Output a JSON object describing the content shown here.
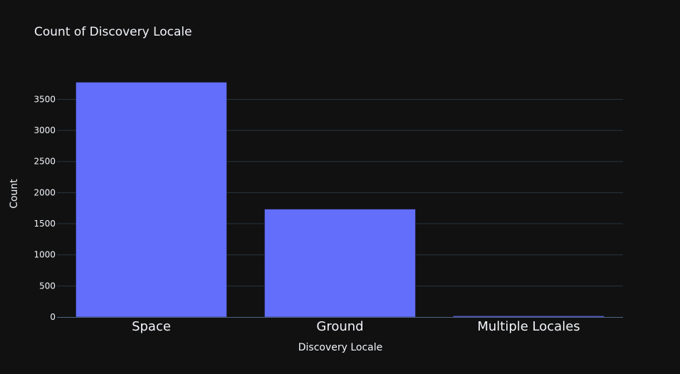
{
  "chart_data": {
    "type": "bar",
    "title": "Count of Discovery Locale",
    "xlabel": "Discovery Locale",
    "ylabel": "Count",
    "categories": [
      "Space",
      "Ground",
      "Multiple Locales"
    ],
    "values": [
      3775,
      1735,
      18
    ],
    "ylim": [
      0,
      3780
    ],
    "yticks": [
      0,
      500,
      1000,
      1500,
      2000,
      2500,
      3000,
      3500
    ],
    "grid": true,
    "legend": "none",
    "colors": {
      "background": "#111111",
      "bar": "#636efa",
      "text": "#f2f5fa",
      "grid": "#283442",
      "axis": "#506784"
    }
  }
}
